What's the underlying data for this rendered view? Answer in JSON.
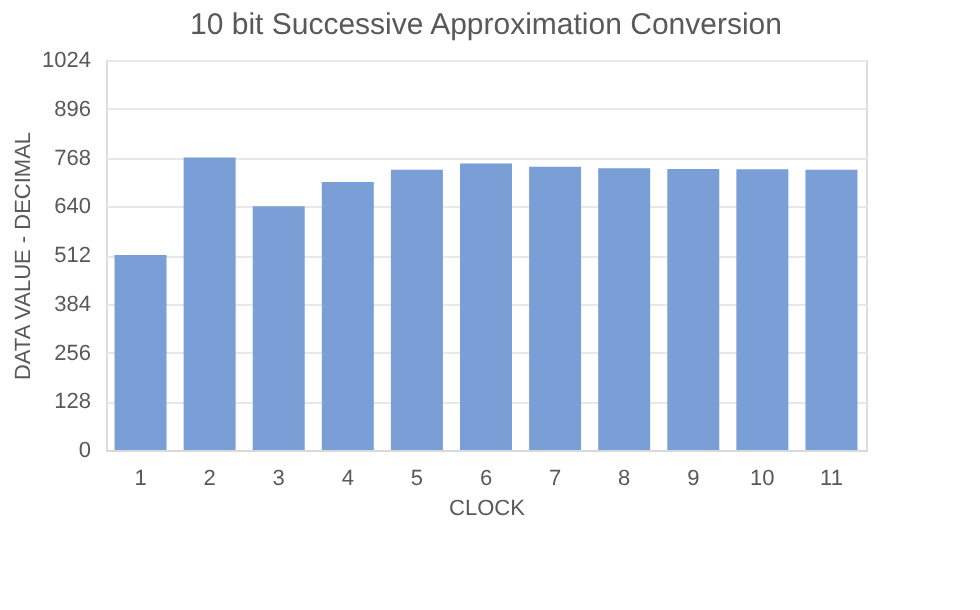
{
  "chart_data": {
    "type": "bar",
    "title": "10 bit Successive Approximation Conversion",
    "xlabel": "CLOCK",
    "ylabel": "DATA VALUE - DECIMAL",
    "categories": [
      "1",
      "2",
      "3",
      "4",
      "5",
      "6",
      "7",
      "8",
      "9",
      "10",
      "11"
    ],
    "values": [
      512,
      768,
      640,
      704,
      736,
      752,
      744,
      740,
      738,
      737,
      736
    ],
    "color": "#7a9fd6",
    "ylim": [
      0,
      1024
    ],
    "yticks": [
      0,
      128,
      256,
      384,
      512,
      640,
      768,
      896,
      1024
    ],
    "grid": "y"
  }
}
